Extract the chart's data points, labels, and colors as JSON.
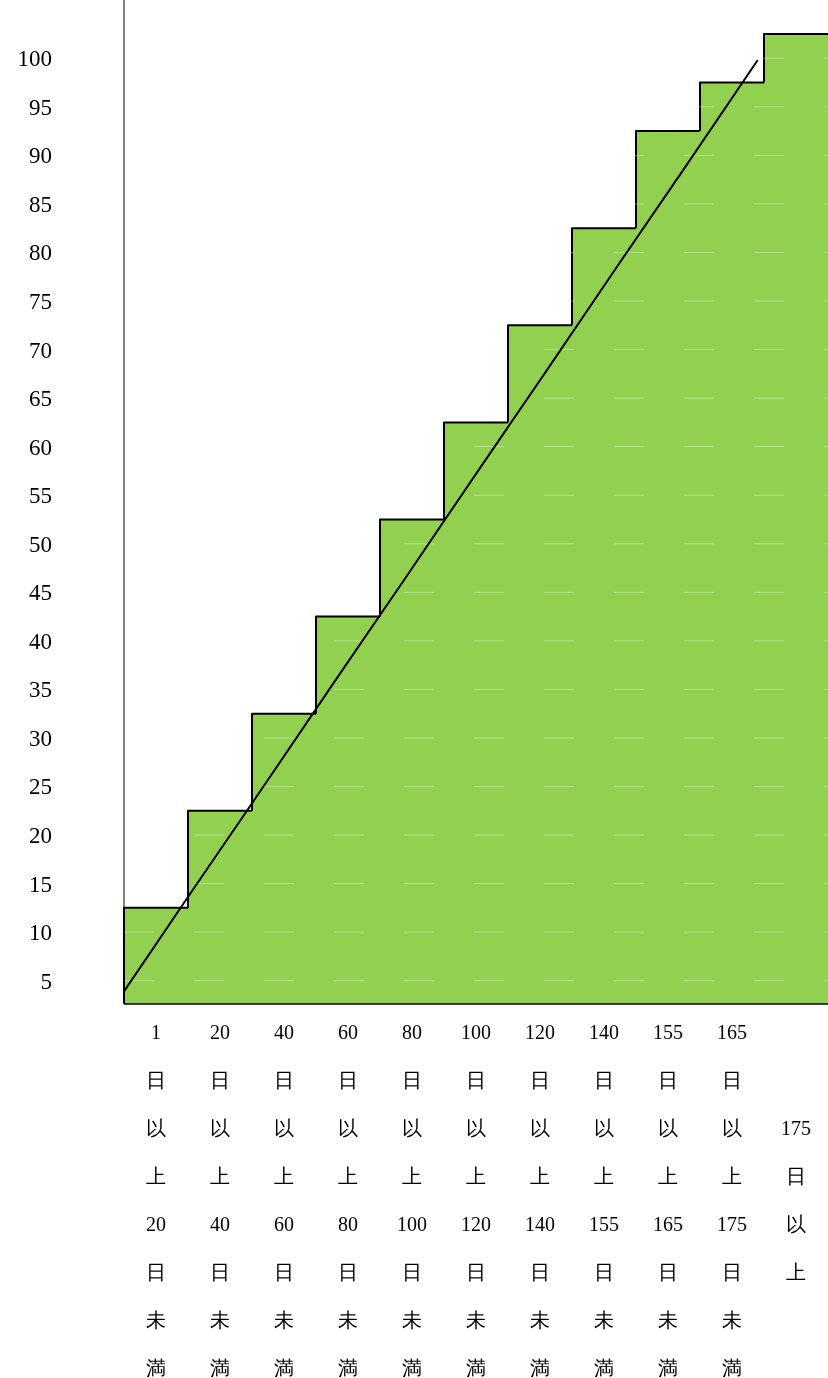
{
  "chart_data": {
    "type": "bar",
    "categories": [
      "1日以上20日未満",
      "20日以上40日未満",
      "40日以上60日未満",
      "60日以上80日未満",
      "80日以上100日未満",
      "100日以上120日未満",
      "120日以上140日未満",
      "140日以上155日未満",
      "155日以上165日未満",
      "165日以上175日未満",
      "175日以上"
    ],
    "series": [
      {
        "type": "bar",
        "color": "#92d050",
        "values": [
          12.5,
          22.5,
          32.5,
          42.5,
          52.5,
          62.5,
          72.5,
          82.5,
          92.5,
          97.5,
          102.5
        ]
      },
      {
        "type": "line",
        "color": "#000000",
        "values": [
          3.9,
          14.6,
          25.2,
          35.9,
          46.5,
          57.2,
          67.8,
          78.5,
          89.1,
          99.8,
          null
        ]
      }
    ],
    "ylim": [
      2.6,
      106
    ],
    "yticks": [
      5,
      10,
      15,
      20,
      25,
      30,
      35,
      40,
      45,
      50,
      55,
      60,
      65,
      70,
      75,
      80,
      85,
      90,
      95,
      100
    ],
    "grid": "y"
  }
}
